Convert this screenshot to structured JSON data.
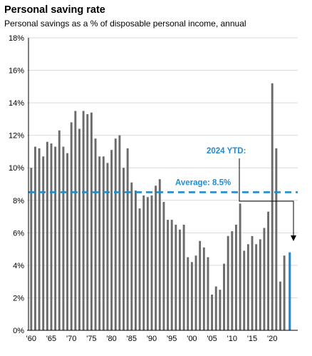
{
  "chart_data": {
    "type": "bar",
    "title": "Personal saving rate",
    "subtitle": "Personal savings as a % of disposable personal income, annual",
    "xlabel": "",
    "ylabel": "",
    "ylim": [
      0,
      18
    ],
    "y_ticks": [
      "0%",
      "2%",
      "4%",
      "6%",
      "8%",
      "10%",
      "12%",
      "14%",
      "16%",
      "18%"
    ],
    "x_ticks": [
      "'60",
      "'65",
      "'70",
      "'75",
      "'80",
      "'85",
      "'90",
      "'95",
      "'00",
      "'05",
      "'10",
      "'15",
      "'20"
    ],
    "x": [
      1960,
      1961,
      1962,
      1963,
      1964,
      1965,
      1966,
      1967,
      1968,
      1969,
      1970,
      1971,
      1972,
      1973,
      1974,
      1975,
      1976,
      1977,
      1978,
      1979,
      1980,
      1981,
      1982,
      1983,
      1984,
      1985,
      1986,
      1987,
      1988,
      1989,
      1990,
      1991,
      1992,
      1993,
      1994,
      1995,
      1996,
      1997,
      1998,
      1999,
      2000,
      2001,
      2002,
      2003,
      2004,
      2005,
      2006,
      2007,
      2008,
      2009,
      2010,
      2011,
      2012,
      2013,
      2014,
      2015,
      2016,
      2017,
      2018,
      2019,
      2020,
      2021,
      2022,
      2023
    ],
    "values": [
      10.0,
      11.3,
      11.2,
      10.7,
      11.6,
      11.5,
      11.3,
      12.3,
      11.3,
      10.9,
      12.8,
      13.5,
      12.4,
      13.5,
      13.3,
      13.4,
      11.8,
      10.7,
      10.7,
      10.3,
      11.1,
      11.8,
      12.0,
      10.0,
      11.2,
      9.1,
      8.6,
      7.5,
      8.3,
      8.2,
      8.3,
      8.9,
      9.3,
      7.9,
      6.8,
      6.8,
      6.5,
      6.2,
      6.5,
      4.5,
      4.2,
      4.6,
      5.5,
      5.1,
      4.5,
      2.2,
      2.7,
      2.5,
      4.1,
      5.8,
      6.1,
      6.5,
      7.8,
      4.9,
      5.3,
      5.8,
      5.3,
      5.6,
      6.3,
      7.3,
      15.2,
      11.2,
      3.0,
      4.6
    ],
    "ytd": {
      "label": "2024 YTD:",
      "value": 4.8,
      "color": "#1f8dd6"
    },
    "average": {
      "label": "Average: 8.5%",
      "value": 8.5,
      "color": "#1f8dd6"
    },
    "bar_color": "#6b6b6b",
    "grid": true,
    "legend": "none"
  }
}
